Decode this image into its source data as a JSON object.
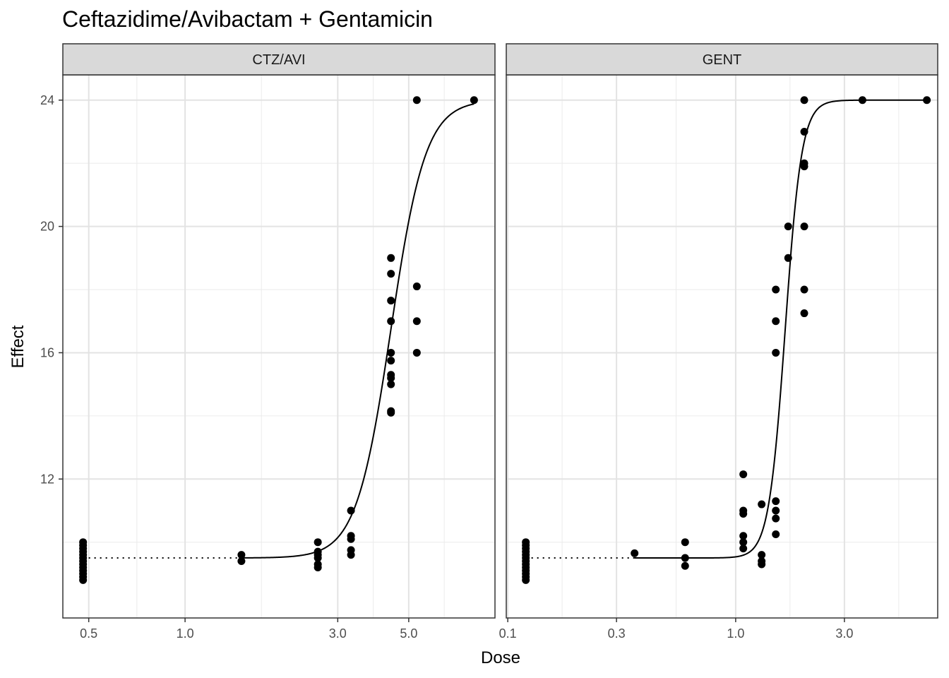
{
  "chart_data": {
    "type": "scatter",
    "title": "Ceftazidime/Avibactam + Gentamicin",
    "xlabel": "Dose",
    "ylabel": "Effect",
    "x_scale": "log",
    "y_ticks": [
      12,
      16,
      20,
      24
    ],
    "ylim": [
      7.6,
      24.8
    ],
    "grid": true,
    "panels": [
      {
        "name": "CTZ/AVI",
        "x_ticks": [
          0.5,
          1.0,
          3.0,
          5.0
        ],
        "x_tick_labels": [
          "0.5",
          "1.0",
          "3.0",
          "5.0"
        ],
        "xlim": [
          0.415,
          9.3
        ],
        "zero_dose_x": 0.48,
        "points": [
          [
            0.48,
            8.8
          ],
          [
            0.48,
            8.9
          ],
          [
            0.48,
            9.0
          ],
          [
            0.48,
            9.1
          ],
          [
            0.48,
            9.2
          ],
          [
            0.48,
            9.3
          ],
          [
            0.48,
            9.4
          ],
          [
            0.48,
            9.5
          ],
          [
            0.48,
            9.6
          ],
          [
            0.48,
            9.7
          ],
          [
            0.48,
            9.8
          ],
          [
            0.48,
            9.9
          ],
          [
            0.48,
            10.0
          ],
          [
            1.5,
            9.4
          ],
          [
            1.5,
            9.6
          ],
          [
            2.6,
            9.2
          ],
          [
            2.6,
            9.3
          ],
          [
            2.6,
            9.5
          ],
          [
            2.6,
            9.6
          ],
          [
            2.6,
            9.7
          ],
          [
            2.6,
            10.0
          ],
          [
            3.3,
            9.6
          ],
          [
            3.3,
            9.75
          ],
          [
            3.3,
            10.1
          ],
          [
            3.3,
            10.2
          ],
          [
            3.3,
            11.0
          ],
          [
            4.4,
            14.1
          ],
          [
            4.4,
            14.15
          ],
          [
            4.4,
            15.0
          ],
          [
            4.4,
            15.2
          ],
          [
            4.4,
            15.3
          ],
          [
            4.4,
            15.75
          ],
          [
            4.4,
            16.0
          ],
          [
            4.4,
            17.0
          ],
          [
            4.4,
            17.65
          ],
          [
            4.4,
            18.5
          ],
          [
            4.4,
            19.0
          ],
          [
            5.3,
            16.0
          ],
          [
            5.3,
            17.0
          ],
          [
            5.3,
            18.1
          ],
          [
            5.3,
            24.0
          ],
          [
            8.0,
            24.0
          ]
        ],
        "curve": {
          "bottom": 9.5,
          "top": 24.0,
          "ec50": 4.4,
          "hill": 8,
          "x_start": 1.5,
          "x_end": 8.0
        }
      },
      {
        "name": "GENT",
        "x_ticks": [
          0.1,
          0.3,
          1.0,
          3.0
        ],
        "x_tick_labels": [
          "0.1",
          "0.3",
          "1.0",
          "3.0"
        ],
        "xlim": [
          0.0985,
          7.7
        ],
        "zero_dose_x": 0.12,
        "points": [
          [
            0.12,
            8.8
          ],
          [
            0.12,
            8.9
          ],
          [
            0.12,
            9.0
          ],
          [
            0.12,
            9.1
          ],
          [
            0.12,
            9.2
          ],
          [
            0.12,
            9.3
          ],
          [
            0.12,
            9.4
          ],
          [
            0.12,
            9.5
          ],
          [
            0.12,
            9.6
          ],
          [
            0.12,
            9.7
          ],
          [
            0.12,
            9.8
          ],
          [
            0.12,
            9.9
          ],
          [
            0.12,
            10.0
          ],
          [
            0.36,
            9.65
          ],
          [
            0.6,
            9.25
          ],
          [
            0.6,
            9.5
          ],
          [
            0.6,
            10.0
          ],
          [
            1.08,
            9.8
          ],
          [
            1.08,
            10.0
          ],
          [
            1.08,
            10.2
          ],
          [
            1.08,
            10.9
          ],
          [
            1.08,
            11.0
          ],
          [
            1.08,
            12.15
          ],
          [
            1.3,
            9.3
          ],
          [
            1.3,
            9.4
          ],
          [
            1.3,
            9.6
          ],
          [
            1.3,
            11.2
          ],
          [
            1.5,
            10.25
          ],
          [
            1.5,
            10.75
          ],
          [
            1.5,
            11.0
          ],
          [
            1.5,
            11.3
          ],
          [
            1.5,
            16.0
          ],
          [
            1.5,
            17.0
          ],
          [
            1.5,
            18.0
          ],
          [
            1.7,
            19.0
          ],
          [
            1.7,
            20.0
          ],
          [
            2.0,
            17.25
          ],
          [
            2.0,
            18.0
          ],
          [
            2.0,
            20.0
          ],
          [
            2.0,
            21.9
          ],
          [
            2.0,
            22.0
          ],
          [
            2.0,
            23.0
          ],
          [
            2.0,
            24.0
          ],
          [
            3.6,
            24.0
          ],
          [
            6.9,
            24.0
          ]
        ],
        "curve": {
          "bottom": 9.5,
          "top": 24.0,
          "ec50": 1.65,
          "hill": 12,
          "x_start": 0.36,
          "x_end": 6.9
        }
      }
    ]
  }
}
